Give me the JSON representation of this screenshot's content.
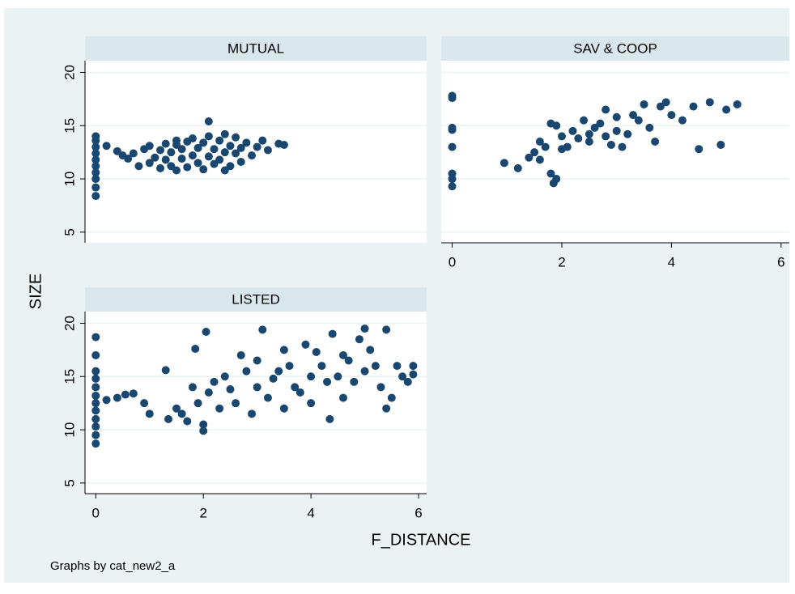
{
  "y_label": "SIZE",
  "x_label": "F_DISTANCE",
  "note": "Graphs by cat_new2_a",
  "chart_data": [
    {
      "type": "scatter",
      "title": "MUTUAL",
      "color": "#1a476f",
      "grid": true,
      "xlim": [
        -0.2,
        6.15
      ],
      "ylim": [
        4,
        21.1
      ],
      "yticks": [
        5,
        10,
        15,
        20
      ],
      "x": [
        0,
        0,
        0,
        0,
        0,
        0,
        0,
        0,
        0,
        0,
        0.2,
        0.4,
        0.5,
        0.6,
        0.7,
        0.8,
        0.9,
        1.0,
        1.0,
        1.1,
        1.2,
        1.2,
        1.3,
        1.3,
        1.4,
        1.4,
        1.5,
        1.5,
        1.6,
        1.6,
        1.7,
        1.7,
        1.8,
        1.8,
        1.9,
        1.9,
        2.0,
        2.0,
        2.1,
        2.1,
        2.2,
        2.2,
        2.3,
        2.3,
        2.4,
        2.4,
        2.5,
        2.5,
        2.6,
        2.6,
        2.7,
        2.7,
        2.8,
        2.9,
        3.0,
        3.1,
        3.2,
        3.4,
        3.5,
        2.1,
        1.5,
        2.4
      ],
      "values": [
        8.4,
        9.2,
        10,
        10.6,
        11.2,
        11.8,
        12.4,
        13,
        13.6,
        14,
        13.1,
        12.6,
        12.2,
        11.9,
        12.4,
        11.2,
        12.8,
        11.5,
        13.1,
        12,
        11,
        12.7,
        11.8,
        13.3,
        11.2,
        12.5,
        10.8,
        13.2,
        11.9,
        12.8,
        11.1,
        13.5,
        12.2,
        13.8,
        11.5,
        12.9,
        10.9,
        13.4,
        12.1,
        14,
        11.4,
        12.8,
        13.6,
        11.8,
        12.5,
        14.2,
        11.2,
        13.1,
        12.4,
        13.9,
        11.6,
        12.9,
        13.4,
        12.2,
        13,
        13.6,
        12.7,
        13.3,
        13.2,
        15.4,
        13.6,
        10.8
      ]
    },
    {
      "type": "scatter",
      "title": "SAV & COOP",
      "color": "#1a476f",
      "grid": true,
      "show_ytick_labels": false,
      "xlim": [
        -0.2,
        6.15
      ],
      "ylim": [
        4,
        21.1
      ],
      "yticks": [
        5,
        10,
        15,
        20
      ],
      "xticks": [
        0,
        2,
        4,
        6
      ],
      "x": [
        0,
        0,
        0,
        0,
        0,
        0,
        0,
        0,
        0.95,
        1.2,
        1.4,
        1.5,
        1.6,
        1.6,
        1.7,
        1.8,
        1.8,
        1.85,
        1.9,
        1.9,
        2.0,
        2.0,
        2.1,
        2.2,
        2.3,
        2.4,
        2.5,
        2.5,
        2.6,
        2.7,
        2.8,
        2.8,
        2.9,
        3.0,
        3.0,
        3.1,
        3.2,
        3.3,
        3.4,
        3.5,
        3.6,
        3.7,
        3.8,
        3.9,
        4.0,
        4.2,
        4.4,
        4.5,
        4.7,
        4.9,
        5.0,
        5.2
      ],
      "values": [
        17.8,
        17.6,
        14.8,
        14.6,
        13,
        10.5,
        10,
        9.3,
        11.5,
        11,
        12,
        12.5,
        13.5,
        11.8,
        13,
        15.2,
        10.5,
        9.6,
        10,
        15,
        12.8,
        14,
        13,
        14.5,
        13.8,
        15.5,
        14.2,
        13.5,
        14.8,
        15.2,
        14,
        16.5,
        13.2,
        14.5,
        15.8,
        13,
        14.2,
        16,
        15.5,
        17,
        14.8,
        13.5,
        16.8,
        17.2,
        16,
        15.5,
        16.8,
        12.8,
        17.2,
        13.2,
        16.5,
        17
      ]
    },
    {
      "type": "scatter",
      "title": "LISTED",
      "color": "#1a476f",
      "grid": true,
      "xlim": [
        -0.2,
        6.15
      ],
      "ylim": [
        4,
        21.1
      ],
      "yticks": [
        5,
        10,
        15,
        20
      ],
      "xticks": [
        0,
        2,
        4,
        6
      ],
      "x": [
        0,
        0,
        0,
        0,
        0,
        0,
        0,
        0,
        0,
        0,
        0,
        0,
        0.2,
        0.4,
        0.55,
        0.7,
        0.9,
        1.0,
        1.3,
        1.35,
        1.5,
        1.6,
        1.7,
        1.8,
        1.85,
        1.9,
        2.0,
        2.0,
        2.05,
        2.1,
        2.2,
        2.3,
        2.4,
        2.5,
        2.6,
        2.7,
        2.8,
        2.9,
        3.0,
        3.0,
        3.1,
        3.2,
        3.3,
        3.4,
        3.5,
        3.5,
        3.6,
        3.7,
        3.8,
        3.9,
        4.0,
        4.0,
        4.1,
        4.2,
        4.3,
        4.35,
        4.4,
        4.5,
        4.6,
        4.6,
        4.7,
        4.8,
        4.9,
        5.0,
        5.0,
        5.1,
        5.2,
        5.3,
        5.4,
        5.4,
        5.5,
        5.6,
        5.7,
        5.8,
        5.9,
        5.9
      ],
      "values": [
        8.7,
        9.5,
        10.3,
        11,
        11.8,
        12.5,
        13.2,
        14,
        14.8,
        15.5,
        17,
        18.7,
        12.8,
        13,
        13.3,
        13.4,
        12.5,
        11.5,
        15.6,
        11,
        12,
        11.5,
        10.8,
        14,
        17.6,
        12.5,
        10.5,
        9.9,
        19.2,
        13.5,
        14.5,
        12,
        15,
        13.8,
        12.5,
        17,
        15.5,
        11.5,
        14,
        16.5,
        19.4,
        13,
        14.8,
        15.5,
        17.5,
        12,
        16,
        14,
        13.5,
        18,
        15,
        12.5,
        17.3,
        16,
        14.5,
        11,
        19,
        15,
        17,
        13,
        16.5,
        14.5,
        18.5,
        19.5,
        15.5,
        17.5,
        16,
        14,
        19.4,
        12,
        13,
        16,
        15,
        14.5,
        16,
        15.2
      ]
    }
  ]
}
